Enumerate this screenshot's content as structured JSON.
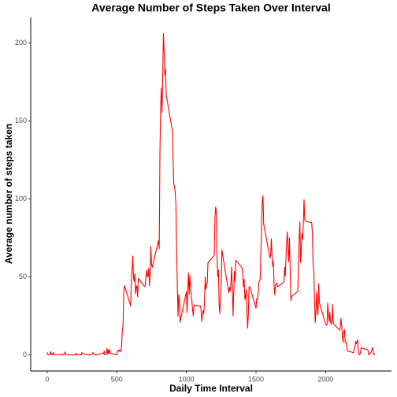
{
  "chart_data": {
    "type": "line",
    "title": "Average Number of Steps Taken Over Interval",
    "x_label": "Daily Time Interval",
    "y_label": "Average number of steps taken",
    "x": [
      0,
      5,
      10,
      15,
      20,
      25,
      30,
      35,
      40,
      45,
      50,
      55,
      100,
      105,
      110,
      115,
      120,
      125,
      130,
      135,
      140,
      145,
      150,
      155,
      200,
      205,
      210,
      215,
      220,
      225,
      230,
      235,
      240,
      245,
      250,
      255,
      300,
      305,
      310,
      315,
      320,
      325,
      330,
      335,
      340,
      345,
      350,
      355,
      400,
      405,
      410,
      415,
      420,
      425,
      430,
      435,
      440,
      445,
      450,
      455,
      500,
      505,
      510,
      515,
      520,
      525,
      530,
      535,
      540,
      545,
      550,
      555,
      600,
      605,
      610,
      615,
      620,
      625,
      630,
      635,
      640,
      645,
      650,
      655,
      700,
      705,
      710,
      715,
      720,
      725,
      730,
      735,
      740,
      745,
      750,
      755,
      800,
      805,
      810,
      815,
      820,
      825,
      830,
      835,
      840,
      845,
      850,
      855,
      900,
      905,
      910,
      915,
      920,
      925,
      930,
      935,
      940,
      945,
      950,
      955,
      1000,
      1005,
      1010,
      1015,
      1020,
      1025,
      1030,
      1035,
      1040,
      1045,
      1050,
      1055,
      1100,
      1105,
      1110,
      1115,
      1120,
      1125,
      1130,
      1135,
      1140,
      1145,
      1150,
      1155,
      1200,
      1205,
      1210,
      1215,
      1220,
      1225,
      1230,
      1235,
      1240,
      1245,
      1250,
      1255,
      1300,
      1305,
      1310,
      1315,
      1320,
      1325,
      1330,
      1335,
      1340,
      1345,
      1350,
      1355,
      1400,
      1405,
      1410,
      1415,
      1420,
      1425,
      1430,
      1435,
      1440,
      1445,
      1450,
      1455,
      1500,
      1505,
      1510,
      1515,
      1520,
      1525,
      1530,
      1535,
      1540,
      1545,
      1550,
      1555,
      1600,
      1605,
      1610,
      1615,
      1620,
      1625,
      1630,
      1635,
      1640,
      1645,
      1650,
      1655,
      1700,
      1705,
      1710,
      1715,
      1720,
      1725,
      1730,
      1735,
      1740,
      1745,
      1750,
      1755,
      1800,
      1805,
      1810,
      1815,
      1820,
      1825,
      1830,
      1835,
      1840,
      1845,
      1850,
      1855,
      1900,
      1905,
      1910,
      1915,
      1920,
      1925,
      1930,
      1935,
      1940,
      1945,
      1950,
      1955,
      2000,
      2005,
      2010,
      2015,
      2020,
      2025,
      2030,
      2035,
      2040,
      2045,
      2050,
      2055,
      2100,
      2105,
      2110,
      2115,
      2120,
      2125,
      2130,
      2135,
      2140,
      2145,
      2150,
      2155,
      2200,
      2205,
      2210,
      2215,
      2220,
      2225,
      2230,
      2235,
      2240,
      2245,
      2250,
      2255,
      2300,
      2305,
      2310,
      2315,
      2320,
      2325,
      2330,
      2335,
      2340,
      2345,
      2350,
      2355
    ],
    "series": [
      {
        "name": "steps",
        "color": "#ff0000",
        "values": [
          1.72,
          0.34,
          0.13,
          0.15,
          0.08,
          2.09,
          0.53,
          0.87,
          0,
          1.47,
          0.3,
          0.13,
          0.32,
          0.68,
          0.15,
          0.34,
          0,
          1.11,
          1.83,
          0.17,
          0.17,
          0.38,
          0.26,
          0,
          0,
          0,
          1.13,
          0,
          0,
          0.13,
          0,
          0.23,
          0,
          0,
          1.55,
          0.94,
          0,
          0,
          0,
          0,
          0.21,
          0.62,
          1.62,
          0.58,
          0.49,
          0.08,
          0,
          0,
          1.19,
          0.94,
          2.57,
          0,
          0.34,
          0.36,
          4.11,
          0.66,
          3.49,
          0.83,
          3.11,
          1.11,
          0,
          1.57,
          3,
          2.25,
          3.32,
          2.96,
          2.09,
          6.06,
          16.02,
          18.34,
          39.45,
          44.49,
          31.49,
          49.26,
          53.77,
          63.45,
          49.96,
          47.08,
          52.15,
          39.34,
          44.02,
          44.17,
          37.36,
          49.04,
          43.81,
          44.38,
          50.51,
          54.51,
          49.92,
          50.98,
          55.68,
          44.32,
          52.26,
          69.55,
          57.85,
          56.15,
          73.38,
          68.21,
          129.43,
          157.53,
          171.15,
          155.4,
          177.3,
          206.17,
          195.92,
          179.57,
          183.4,
          167.02,
          143.45,
          124.04,
          109.11,
          108.11,
          103.72,
          95.97,
          66.21,
          45.23,
          24.79,
          38.75,
          34.98,
          21.06,
          40.57,
          26.98,
          42.42,
          52.66,
          38.92,
          50.79,
          44.28,
          37.42,
          34.7,
          28.34,
          25.09,
          31.94,
          31.36,
          29.68,
          21.32,
          25.55,
          28.38,
          26.47,
          33.43,
          49.98,
          42.04,
          44.6,
          46.04,
          59.19,
          63.87,
          87.7,
          94.85,
          92.77,
          63.4,
          50.17,
          54.47,
          32.42,
          26.53,
          37.74,
          45.06,
          67.28,
          42.34,
          39.88,
          43.26,
          40.98,
          46.25,
          56.43,
          42.75,
          25.13,
          39.96,
          53.55,
          47.32,
          60.81,
          55.75,
          51.96,
          43.58,
          48.7,
          35.47,
          37.55,
          41.85,
          27.51,
          17.11,
          26.08,
          43.62,
          43.77,
          30.02,
          36.08,
          35.49,
          38.85,
          45.96,
          47.75,
          48.13,
          65.32,
          82.91,
          98.66,
          102.11,
          83.96,
          62.13,
          64.13,
          74.55,
          63.17,
          56.91,
          59.77,
          43.87,
          38.57,
          44.66,
          45.45,
          46.21,
          43.68,
          46.62,
          56.3,
          50.72,
          61.23,
          72.72,
          78.94,
          68.94,
          59.66,
          75.09,
          56.51,
          34.77,
          37.45,
          40.68,
          58.02,
          74.7,
          85.32,
          59.26,
          67.77,
          77.7,
          74.25,
          85.34,
          99.45,
          86.58,
          85.6,
          84.87,
          77.83,
          58.04,
          53.36,
          36.33,
          20.72,
          27.4,
          40.02,
          30.21,
          25.55,
          45.66,
          33.53,
          19.62,
          19.02,
          19.34,
          33.34,
          26.81,
          21.17,
          27.3,
          21.34,
          19.55,
          21.32,
          32.3,
          20.15,
          15.94,
          17.23,
          23.45,
          19.25,
          12.45,
          8.02,
          14.66,
          16.3,
          8.68,
          7.79,
          8.13,
          2.62,
          1.45,
          3.68,
          4.81,
          8.51,
          7.08,
          8.7,
          9.75,
          2.21,
          0.32,
          0.11,
          1.6,
          4.6,
          3.3,
          2.85,
          0,
          0.83,
          0.96,
          1.58,
          2.6,
          4.7,
          3.3,
          0.64,
          0.23,
          1.08
        ]
      }
    ],
    "xlim": [
      -117.75,
      2472.75
    ],
    "xticks": [
      0,
      500,
      1000,
      1500,
      2000
    ],
    "ylim": [
      -10.31,
      216.48
    ],
    "yticks": [
      0,
      50,
      100,
      150,
      200
    ],
    "grid": false
  }
}
